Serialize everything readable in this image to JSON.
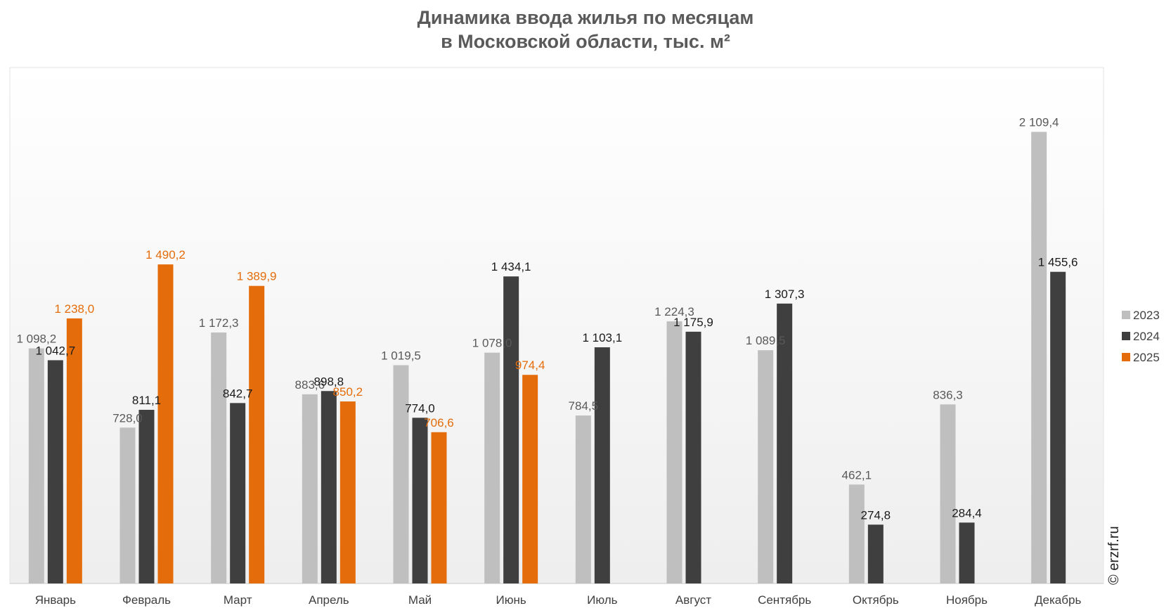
{
  "chart_data": {
    "type": "bar",
    "title": [
      "Динамика ввода жилья по месяцам",
      "в Московской области, тыс. м²"
    ],
    "categories": [
      "Январь",
      "Февраль",
      "Март",
      "Апрель",
      "Май",
      "Июнь",
      "Июль",
      "Август",
      "Сентябрь",
      "Октябрь",
      "Ноябрь",
      "Декабрь"
    ],
    "series": [
      {
        "name": "2023",
        "color": "#bfbfbf",
        "label_color": "#595959",
        "values": [
          1098.2,
          728.0,
          1172.3,
          883.6,
          1019.5,
          1078.0,
          784.5,
          1224.3,
          1089.5,
          462.1,
          836.3,
          2109.4
        ],
        "labels": [
          "1 098,2",
          "728,0",
          "1 172,3",
          "883,6",
          "1 019,5",
          "1 078,0",
          "784,5",
          "1 224,3",
          "1 089,5",
          "462,1",
          "836,3",
          "2 109,4"
        ]
      },
      {
        "name": "2024",
        "color": "#3f3f3f",
        "label_color": "#1a1a1a",
        "values": [
          1042.7,
          811.1,
          842.7,
          898.8,
          774.0,
          1434.1,
          1103.1,
          1175.9,
          1307.3,
          274.8,
          284.4,
          1455.6
        ],
        "labels": [
          "1 042,7",
          "811,1",
          "842,7",
          "898,8",
          "774,0",
          "1 434,1",
          "1 103,1",
          "1 175,9",
          "1 307,3",
          "274,8",
          "284,4",
          "1 455,6"
        ]
      },
      {
        "name": "2025",
        "color": "#e46c0a",
        "label_color": "#e46c0a",
        "values": [
          1238.0,
          1490.2,
          1389.9,
          850.2,
          706.6,
          974.4,
          null,
          null,
          null,
          null,
          null,
          null
        ],
        "labels": [
          "1 238,0",
          "1 490,2",
          "1 389,9",
          "850,2",
          "706,6",
          "974,4",
          null,
          null,
          null,
          null,
          null,
          null
        ]
      }
    ],
    "ylim": [
      0,
      2410
    ],
    "grid": false,
    "legend": "right"
  },
  "watermark": "© erzrf.ru"
}
